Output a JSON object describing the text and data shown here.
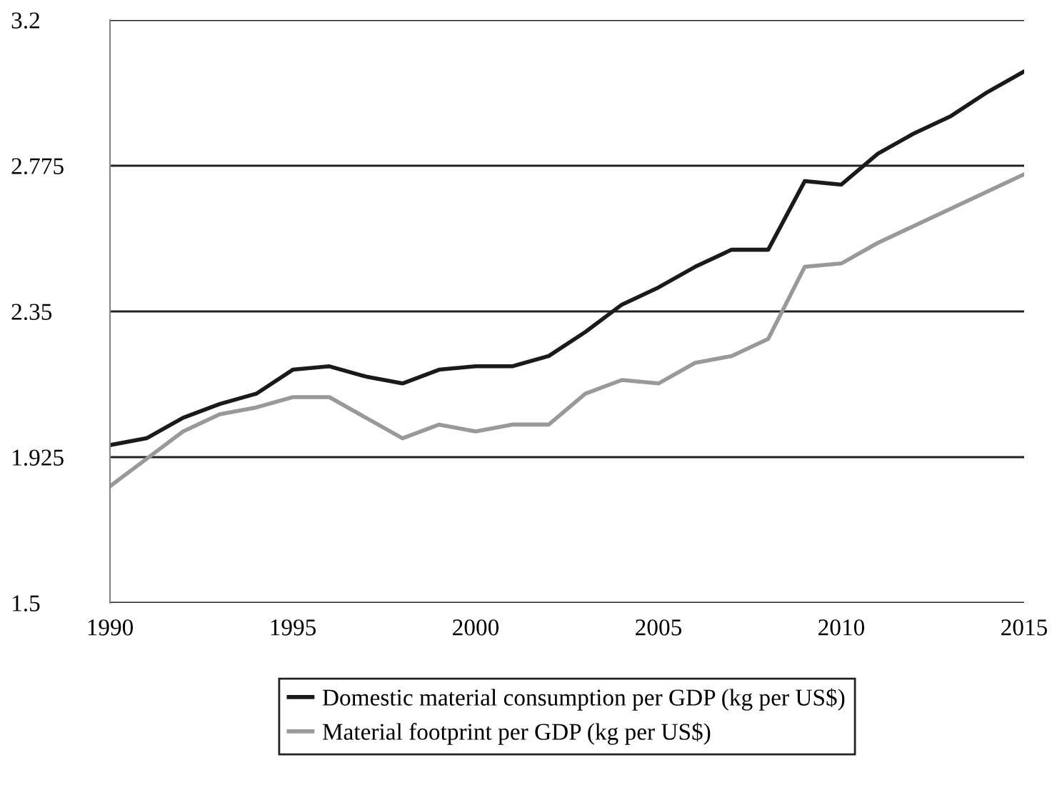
{
  "chart_data": {
    "type": "line",
    "x": [
      1990,
      1991,
      1992,
      1993,
      1994,
      1995,
      1996,
      1997,
      1998,
      1999,
      2000,
      2001,
      2002,
      2003,
      2004,
      2005,
      2006,
      2007,
      2008,
      2009,
      2010,
      2011,
      2012,
      2013,
      2014,
      2015
    ],
    "series": [
      {
        "name": "Domestic material consumption per GDP (kg per US$)",
        "color": "#1a1a1a",
        "values": [
          1.96,
          1.98,
          2.04,
          2.08,
          2.11,
          2.18,
          2.19,
          2.16,
          2.14,
          2.18,
          2.19,
          2.19,
          2.22,
          2.29,
          2.37,
          2.42,
          2.48,
          2.53,
          2.53,
          2.73,
          2.72,
          2.81,
          2.87,
          2.92,
          2.99,
          3.05
        ]
      },
      {
        "name": "Material footprint per GDP (kg per US$)",
        "color": "#999999",
        "values": [
          1.84,
          1.92,
          2.0,
          2.05,
          2.07,
          2.1,
          2.1,
          2.04,
          1.98,
          2.02,
          2.0,
          2.02,
          2.02,
          2.11,
          2.15,
          2.14,
          2.2,
          2.22,
          2.27,
          2.48,
          2.49,
          2.55,
          2.6,
          2.65,
          2.7,
          2.75
        ]
      }
    ],
    "xlim": [
      1990,
      2015
    ],
    "xticks": [
      1990,
      1995,
      2000,
      2005,
      2010,
      2015
    ],
    "ylim": [
      1.5,
      3.2
    ],
    "yticks": [
      1.5,
      1.925,
      2.35,
      2.775,
      3.2
    ],
    "grid": "y",
    "legend": "bottom",
    "marker": "none",
    "line_style": "solid"
  }
}
